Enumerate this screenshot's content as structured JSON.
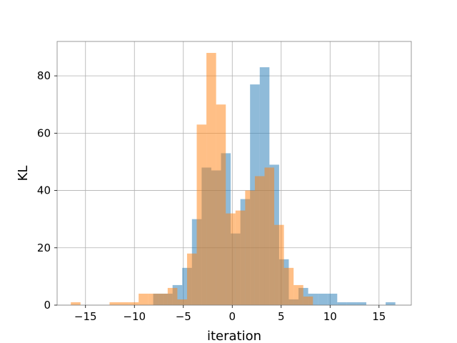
{
  "chart_data": {
    "type": "histogram",
    "xlabel": "iteration",
    "ylabel": "KL",
    "xlim": [
      -17.9,
      18.3
    ],
    "ylim": [
      0,
      92
    ],
    "xticks": [
      -15,
      -10,
      -5,
      0,
      5,
      10,
      15
    ],
    "yticks": [
      0,
      20,
      40,
      60,
      80
    ],
    "grid": true,
    "series": [
      {
        "color": "#1f77b4",
        "opacity": 0.5,
        "bin_start": -16.0,
        "bin_width": 0.99,
        "counts": [
          0,
          0,
          0,
          0,
          0,
          0,
          0,
          0,
          4,
          4,
          7,
          13,
          30,
          48,
          47,
          53,
          25,
          37,
          77,
          83,
          49,
          16,
          2,
          6,
          4,
          4,
          4,
          1,
          1,
          1,
          0,
          0,
          1
        ]
      },
      {
        "color": "#ff7f0e",
        "opacity": 0.5,
        "bin_start": -16.5,
        "bin_width": 0.99,
        "counts": [
          1,
          0,
          0,
          0,
          1,
          1,
          1,
          4,
          4,
          4,
          6,
          2,
          18,
          63,
          88,
          70,
          32,
          33,
          40,
          45,
          48,
          28,
          13,
          7,
          3,
          0,
          0,
          0,
          0,
          0,
          0,
          0,
          0,
          0
        ]
      }
    ]
  }
}
